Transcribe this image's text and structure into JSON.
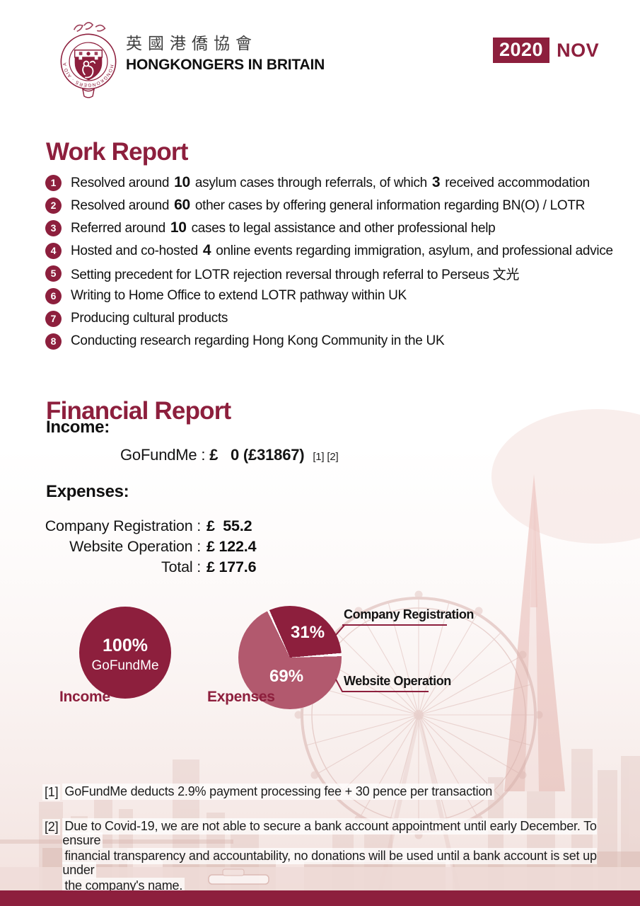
{
  "page": {
    "accent": "#8d1f3d",
    "accent_light": "#b2596e",
    "background": "#ffffff"
  },
  "header": {
    "org_name_zh": "英國港僑協會",
    "org_name_en": "HONGKONGERS IN BRITAIN",
    "date_year": "2020",
    "date_month": "NOV"
  },
  "work_report": {
    "title": "Work Report",
    "items": [
      {
        "num": "1",
        "text": "Resolved around **10** asylum cases through referrals, of which **3** received accommodation"
      },
      {
        "num": "2",
        "text": "Resolved around **60** other cases by offering general information regarding BN(O) / LOTR"
      },
      {
        "num": "3",
        "text": "Referred around **10** cases to legal assistance and other professional help"
      },
      {
        "num": "4",
        "text": "Hosted and co-hosted **4** online events regarding immigration, asylum, and professional advice"
      },
      {
        "num": "5",
        "text": "Setting precedent for LOTR rejection reversal through referral to Perseus 文光"
      },
      {
        "num": "6",
        "text": "Writing to Home Office to extend LOTR pathway within UK"
      },
      {
        "num": "7",
        "text": "Producing cultural products"
      },
      {
        "num": "8",
        "text": "Conducting research regarding Hong Kong Community in the UK"
      }
    ]
  },
  "financial_report": {
    "title": "Financial Report",
    "income_label": "Income:",
    "income_row": {
      "label": "GoFundMe :",
      "value": "£   0 (£31867)",
      "refs": "[1] [2]"
    },
    "expenses_label": "Expenses:",
    "expense_rows": [
      {
        "label": "Company Registration :",
        "value": "£  55.2"
      },
      {
        "label": "Website Operation :",
        "value": "£ 122.4"
      },
      {
        "label": "Total :",
        "value": "£ 177.6"
      }
    ]
  },
  "chart_data": [
    {
      "type": "pie",
      "title": "Income",
      "slices": [
        {
          "label": "GoFundMe",
          "value": 100,
          "color": "#8d1f3d"
        }
      ],
      "center_labels": [
        "100%",
        "GoFundMe"
      ],
      "legend_position": "none"
    },
    {
      "type": "pie",
      "title": "Expenses",
      "slices": [
        {
          "label": "Company Registration",
          "value": 31,
          "color": "#8d1f3d"
        },
        {
          "label": "Website Operation",
          "value": 69,
          "color": "#b2596e"
        }
      ],
      "slice_labels": [
        "31%",
        "69%"
      ],
      "callout_labels": [
        "Company Registration",
        "Website Operation"
      ],
      "legend_position": "callouts-right"
    }
  ],
  "charts": {
    "income_pie": {
      "pct": "100%",
      "source": "GoFundMe",
      "caption": "Income"
    },
    "expenses_pie": {
      "pct_dark": "31%",
      "pct_light": "69%",
      "caption": "Expenses",
      "callout_top": "Company Registration",
      "callout_bottom": "Website Operation"
    }
  },
  "footnotes": [
    {
      "marker": "[1]",
      "lines": [
        "GoFundMe deducts 2.9% payment processing fee + 30 pence per transaction"
      ]
    },
    {
      "marker": "[2]",
      "lines": [
        "Due to Covid-19, we are not able to secure a bank account appointment until early December. To ensure",
        "financial transparency and accountability, no donations will be used until a bank account is set up under",
        "the company's name."
      ]
    }
  ]
}
